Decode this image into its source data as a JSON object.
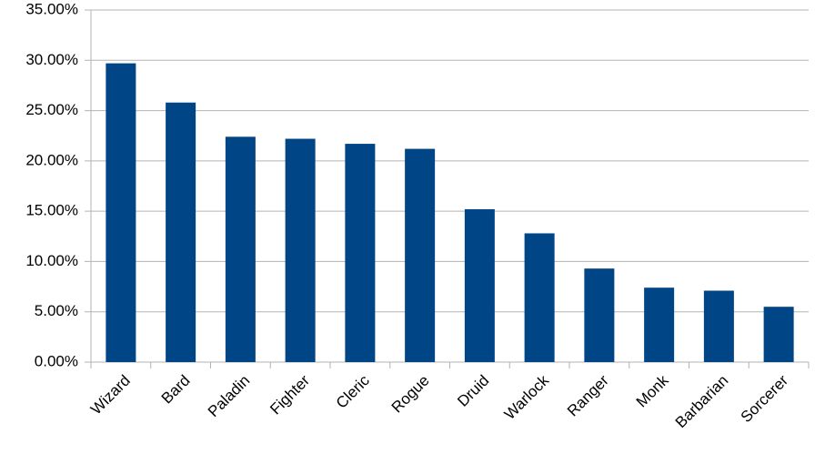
{
  "chart_data": {
    "type": "bar",
    "categories": [
      "Wizard",
      "Bard",
      "Paladin",
      "Fighter",
      "Cleric",
      "Rogue",
      "Druid",
      "Warlock",
      "Ranger",
      "Monk",
      "Barbarian",
      "Sorcerer"
    ],
    "values": [
      29.7,
      25.8,
      22.4,
      22.2,
      21.7,
      21.2,
      15.2,
      12.8,
      9.3,
      7.4,
      7.1,
      5.5
    ],
    "color": "#004586",
    "ylim": [
      0,
      35
    ],
    "yticks": [
      {
        "value": 0,
        "label": "0.00%"
      },
      {
        "value": 5,
        "label": "5.00%"
      },
      {
        "value": 10,
        "label": "10.00%"
      },
      {
        "value": 15,
        "label": "15.00%"
      },
      {
        "value": 20,
        "label": "20.00%"
      },
      {
        "value": 25,
        "label": "25.00%"
      },
      {
        "value": 30,
        "label": "30.00%"
      },
      {
        "value": 35,
        "label": "35.00%"
      }
    ],
    "grid": true
  }
}
